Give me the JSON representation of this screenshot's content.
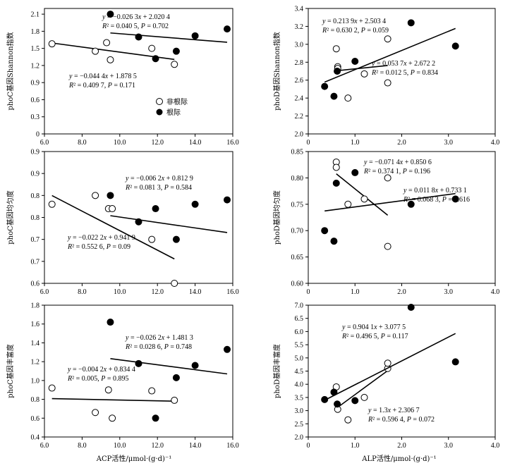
{
  "legend": {
    "open_label": "非根际",
    "filled_label": "根际"
  },
  "xlabels": {
    "acp": "ACP活性/μmol·(g·d)⁻¹",
    "alp": "ALP活性/μmol·(g·d)⁻¹"
  },
  "chart_data": [
    {
      "id": "phoC-shannon",
      "type": "scatter",
      "ylabel": "phoC基因Shannon指数",
      "xlim": [
        6.0,
        16.0
      ],
      "xticks": [
        6.0,
        8.0,
        10.0,
        12.0,
        14.0,
        16.0
      ],
      "ylim": [
        0,
        2.2
      ],
      "yticks": [
        0,
        0.3,
        0.6,
        0.9,
        1.2,
        1.5,
        1.8,
        2.1
      ],
      "xtick_labels": [
        "6.0",
        "8.0",
        "10.0",
        "12.0",
        "14.0",
        "16.0"
      ],
      "ytick_labels": [
        "0",
        "0.3",
        "0.6",
        "0.9",
        "1.2",
        "1.5",
        "1.8",
        "2.1"
      ],
      "series": [
        {
          "marker": "open",
          "points": [
            [
              6.4,
              1.58
            ],
            [
              8.7,
              1.45
            ],
            [
              9.3,
              1.6
            ],
            [
              9.5,
              1.3
            ],
            [
              11.7,
              1.5
            ],
            [
              12.9,
              1.22
            ]
          ],
          "fit": {
            "slope": -0.0444,
            "intercept": 1.8785,
            "x": [
              6.4,
              12.9
            ]
          }
        },
        {
          "marker": "filled",
          "points": [
            [
              9.5,
              2.1
            ],
            [
              11.0,
              1.7
            ],
            [
              11.9,
              1.32
            ],
            [
              13.0,
              1.45
            ],
            [
              14.0,
              1.72
            ],
            [
              15.7,
              1.84
            ]
          ],
          "fit": {
            "slope": -0.0263,
            "intercept": 2.0204,
            "x": [
              9.5,
              15.7
            ]
          }
        }
      ],
      "annotations": [
        {
          "text": [
            "y = −0.026 3x + 2.020 4",
            "R² = 0.040 5, P = 0.702"
          ]
        },
        {
          "text": [
            "y = −0.044 4x + 1.878 5",
            "R² = 0.409 7, P = 0.171"
          ]
        }
      ]
    },
    {
      "id": "phoD-shannon",
      "type": "scatter",
      "ylabel": "phoD基因Shannon指数",
      "xlim": [
        0,
        4.0
      ],
      "xticks": [
        0,
        1.0,
        2.0,
        3.0,
        4.0
      ],
      "ylim": [
        2.0,
        3.4
      ],
      "yticks": [
        2.0,
        2.2,
        2.4,
        2.6,
        2.8,
        3.0,
        3.2,
        3.4
      ],
      "xtick_labels": [
        "0",
        "1.0",
        "2.0",
        "3.0",
        "4.0"
      ],
      "ytick_labels": [
        "2.0",
        "2.2",
        "2.4",
        "2.6",
        "2.8",
        "3.0",
        "3.2",
        "3.4"
      ],
      "series": [
        {
          "marker": "open",
          "points": [
            [
              0.6,
              2.95
            ],
            [
              0.63,
              2.75
            ],
            [
              0.63,
              2.73
            ],
            [
              0.85,
              2.4
            ],
            [
              1.2,
              2.67
            ],
            [
              1.7,
              3.06
            ],
            [
              1.7,
              2.57
            ]
          ],
          "fit": {
            "slope": 0.0537,
            "intercept": 2.6722,
            "x": [
              0.6,
              1.7
            ]
          }
        },
        {
          "marker": "filled",
          "points": [
            [
              0.35,
              2.53
            ],
            [
              0.55,
              2.42
            ],
            [
              0.62,
              2.7
            ],
            [
              1.0,
              2.81
            ],
            [
              2.2,
              3.24
            ],
            [
              3.15,
              2.98
            ]
          ],
          "fit": {
            "slope": 0.2139,
            "intercept": 2.5034,
            "x": [
              0.35,
              3.15
            ]
          }
        }
      ],
      "annotations": [
        {
          "text": [
            "y = 0.213 9x + 2.503 4",
            "R² = 0.630 2, P = 0.059"
          ]
        },
        {
          "text": [
            "y = 0.053 7x + 2.672 2",
            "R² = 0.012 5, P = 0.834"
          ]
        }
      ]
    },
    {
      "id": "phoC-evenness",
      "type": "scatter",
      "ylabel": "phoC基因均匀度",
      "xlim": [
        6.0,
        16.0
      ],
      "xticks": [
        6.0,
        8.0,
        10.0,
        12.0,
        14.0,
        16.0
      ],
      "ylim": [
        0.6,
        0.9
      ],
      "yticks": [
        0.6,
        0.65,
        0.7,
        0.75,
        0.8,
        0.85,
        0.9
      ],
      "xtick_labels": [
        "6.0",
        "8.0",
        "10.0",
        "12.0",
        "14.0",
        "16.0"
      ],
      "ytick_labels": [
        "0.6",
        "0.7",
        "0.7",
        "0.8",
        "0.8",
        "0.9",
        "0.9"
      ],
      "series": [
        {
          "marker": "open",
          "points": [
            [
              6.4,
              0.78
            ],
            [
              8.7,
              0.8
            ],
            [
              9.4,
              0.77
            ],
            [
              9.6,
              0.77
            ],
            [
              11.7,
              0.7
            ],
            [
              12.9,
              0.6
            ]
          ],
          "fit": {
            "slope": -0.0222,
            "intercept": 0.9419,
            "x": [
              6.4,
              12.9
            ]
          }
        },
        {
          "marker": "filled",
          "points": [
            [
              9.5,
              0.8
            ],
            [
              11.0,
              0.74
            ],
            [
              11.9,
              0.77
            ],
            [
              13.0,
              0.7
            ],
            [
              14.0,
              0.78
            ],
            [
              15.7,
              0.79
            ]
          ],
          "fit": {
            "slope": -0.0062,
            "intercept": 0.8129,
            "x": [
              9.5,
              15.7
            ]
          }
        }
      ],
      "annotations": [
        {
          "text": [
            "y = −0.006 2x + 0.812 9",
            "R² = 0.081 3, P = 0.584"
          ]
        },
        {
          "text": [
            "y = −0.022 2x + 0.941 9",
            "R² = 0.552 6,  P = 0.09"
          ]
        }
      ]
    },
    {
      "id": "phoD-evenness",
      "type": "scatter",
      "ylabel": "phoD基因均匀度",
      "xlim": [
        0,
        4.0
      ],
      "xticks": [
        0,
        1.0,
        2.0,
        3.0,
        4.0
      ],
      "ylim": [
        0.6,
        0.85
      ],
      "yticks": [
        0.6,
        0.65,
        0.7,
        0.75,
        0.8,
        0.85
      ],
      "xtick_labels": [
        "0",
        "1.0",
        "2.0",
        "3.0",
        "4.0"
      ],
      "ytick_labels": [
        "0.60",
        "0.65",
        "0.70",
        "0.75",
        "0.80",
        "0.85"
      ],
      "series": [
        {
          "marker": "open",
          "points": [
            [
              0.6,
              0.83
            ],
            [
              0.6,
              0.82
            ],
            [
              0.85,
              0.75
            ],
            [
              1.2,
              0.76
            ],
            [
              1.7,
              0.8
            ],
            [
              1.7,
              0.67
            ]
          ],
          "fit": {
            "slope": -0.0714,
            "intercept": 0.8506,
            "x": [
              0.6,
              1.7
            ]
          }
        },
        {
          "marker": "filled",
          "points": [
            [
              0.35,
              0.7
            ],
            [
              0.55,
              0.68
            ],
            [
              0.6,
              0.79
            ],
            [
              1.0,
              0.81
            ],
            [
              2.2,
              0.75
            ],
            [
              3.15,
              0.76
            ]
          ],
          "fit": {
            "slope": 0.0118,
            "intercept": 0.7331,
            "x": [
              0.35,
              3.15
            ]
          }
        }
      ],
      "annotations": [
        {
          "text": [
            "y = −0.071 4x + 0.850 6",
            "R² = 0.374 1, P = 0.196"
          ]
        },
        {
          "text": [
            "y = 0.011 8x + 0.733 1",
            "R² = 0.068 3, P = 0.616"
          ]
        }
      ]
    },
    {
      "id": "phoC-richness",
      "type": "scatter",
      "ylabel": "phoC基因丰富度",
      "xlabel_key": "acp",
      "xlim": [
        6.0,
        16.0
      ],
      "xticks": [
        6.0,
        8.0,
        10.0,
        12.0,
        14.0,
        16.0
      ],
      "ylim": [
        0.4,
        1.8
      ],
      "yticks": [
        0.4,
        0.6,
        0.8,
        1.0,
        1.2,
        1.4,
        1.6,
        1.8
      ],
      "xtick_labels": [
        "6.0",
        "8.0",
        "10.0",
        "12.0",
        "14.0",
        "16.0"
      ],
      "ytick_labels": [
        "0.4",
        "0.6",
        "0.8",
        "1.0",
        "1.2",
        "1.4",
        "1.6",
        "1.8"
      ],
      "series": [
        {
          "marker": "open",
          "points": [
            [
              6.4,
              0.92
            ],
            [
              8.7,
              0.66
            ],
            [
              9.4,
              0.9
            ],
            [
              9.6,
              0.6
            ],
            [
              11.7,
              0.89
            ],
            [
              12.9,
              0.79
            ]
          ],
          "fit": {
            "slope": -0.0042,
            "intercept": 0.8344,
            "x": [
              6.4,
              12.9
            ]
          }
        },
        {
          "marker": "filled",
          "points": [
            [
              9.5,
              1.62
            ],
            [
              11.0,
              1.18
            ],
            [
              11.9,
              0.6
            ],
            [
              13.0,
              1.03
            ],
            [
              14.0,
              1.16
            ],
            [
              15.7,
              1.33
            ]
          ],
          "fit": {
            "slope": -0.0262,
            "intercept": 1.4813,
            "x": [
              9.5,
              15.7
            ]
          }
        }
      ],
      "annotations": [
        {
          "text": [
            "y = −0.026 2x + 1.481 3",
            "R² = 0.028 6, P = 0.748"
          ]
        },
        {
          "text": [
            "y = −0.004 2x + 0.834 4",
            "R² = 0.005, P = 0.895"
          ]
        }
      ]
    },
    {
      "id": "phoD-richness",
      "type": "scatter",
      "ylabel": "phoD基因丰富度",
      "xlabel_key": "alp",
      "xlim": [
        0,
        4.0
      ],
      "xticks": [
        0,
        1.0,
        2.0,
        3.0,
        4.0
      ],
      "ylim": [
        2.0,
        7.0
      ],
      "yticks": [
        2.0,
        2.5,
        3.0,
        3.5,
        4.0,
        4.5,
        5.0,
        5.5,
        6.0,
        6.5,
        7.0
      ],
      "xtick_labels": [
        "0",
        "1.0",
        "2.0",
        "3.0",
        "4.0"
      ],
      "ytick_labels": [
        "2.0",
        "2.5",
        "3.0",
        "3.5",
        "4.0",
        "4.5",
        "5.0",
        "5.5",
        "6.0",
        "6.5",
        "7.0"
      ],
      "series": [
        {
          "marker": "open",
          "points": [
            [
              0.6,
              3.9
            ],
            [
              0.63,
              3.05
            ],
            [
              0.85,
              2.65
            ],
            [
              1.2,
              3.5
            ],
            [
              1.7,
              4.6
            ],
            [
              1.7,
              4.8
            ]
          ],
          "fit": {
            "slope": 1.3,
            "intercept": 2.3067,
            "x": [
              0.6,
              1.7
            ]
          }
        },
        {
          "marker": "filled",
          "points": [
            [
              0.35,
              3.42
            ],
            [
              0.55,
              3.7
            ],
            [
              0.62,
              3.25
            ],
            [
              1.0,
              3.38
            ],
            [
              2.2,
              6.92
            ],
            [
              3.15,
              4.85
            ]
          ],
          "fit": {
            "slope": 0.9041,
            "intercept": 3.0775,
            "x": [
              0.35,
              3.15
            ]
          }
        }
      ],
      "annotations": [
        {
          "text": [
            "y = 0.904 1x + 3.077 5",
            "R² = 0.496 5, P = 0.117"
          ]
        },
        {
          "text": [
            "y = 1.3x + 2.306 7",
            "R² = 0.596 4, P = 0.072"
          ]
        }
      ]
    }
  ]
}
